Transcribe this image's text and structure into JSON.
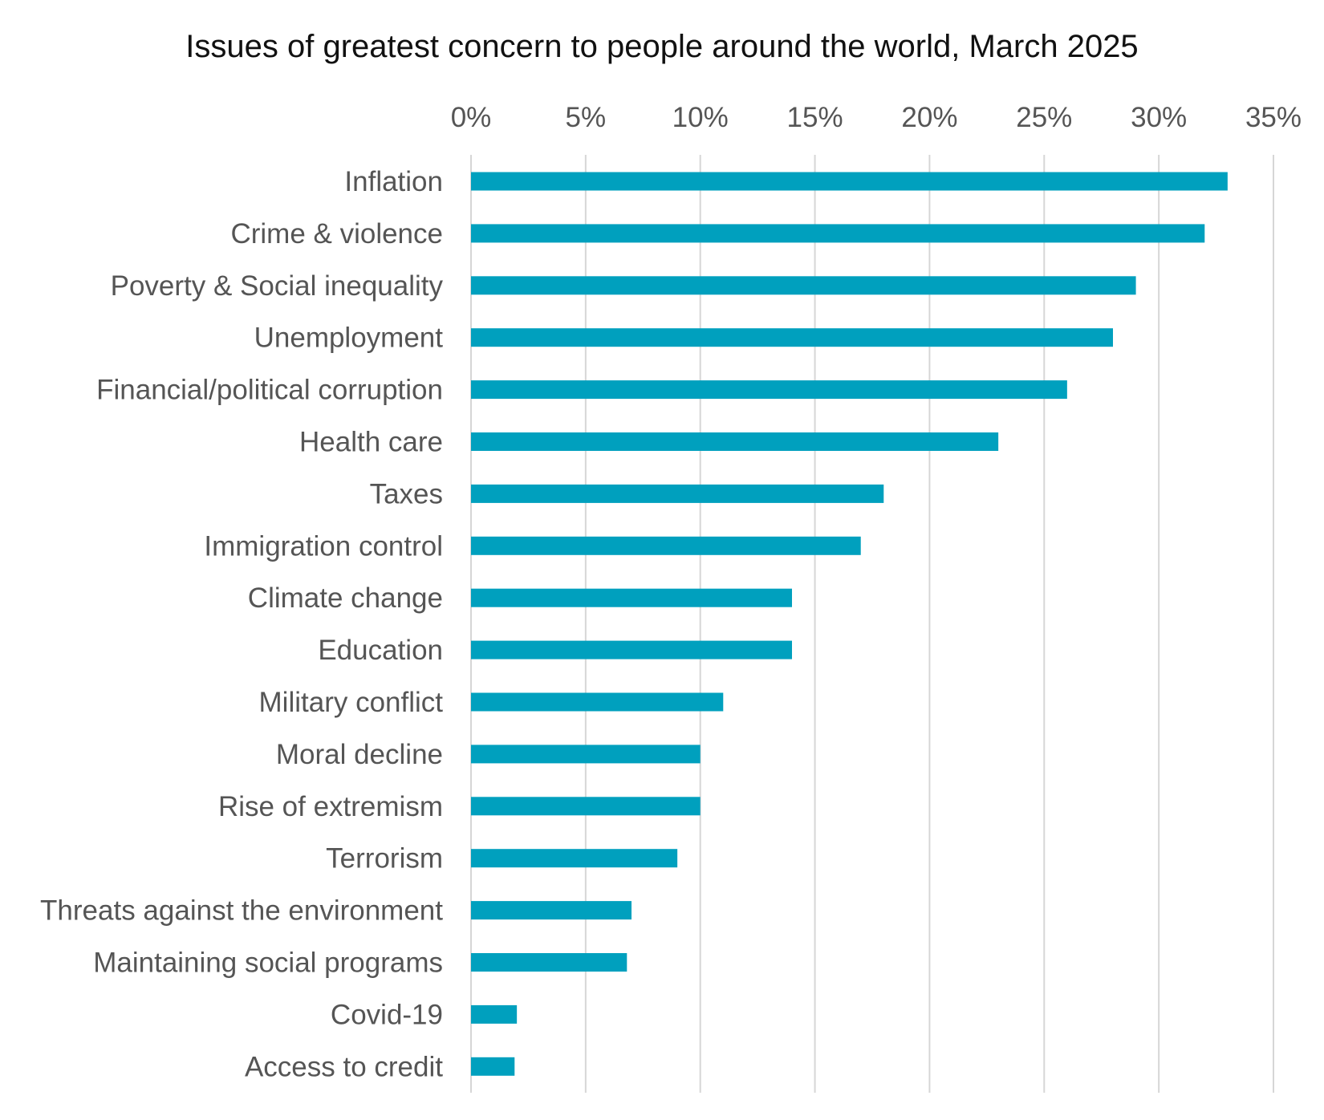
{
  "chart_data": {
    "type": "bar",
    "orientation": "horizontal",
    "title": "Issues of greatest concern to people around the world, March 2025",
    "xlabel": "",
    "ylabel": "",
    "x_axis_position": "top",
    "xlim": [
      0,
      35
    ],
    "x_ticks": [
      0,
      5,
      10,
      15,
      20,
      25,
      30,
      35
    ],
    "x_tick_labels": [
      "0%",
      "5%",
      "10%",
      "15%",
      "20%",
      "25%",
      "30%",
      "35%"
    ],
    "grid": true,
    "legend": "none",
    "bar_color": "#00A0BE",
    "categories": [
      "Inflation",
      "Crime & violence",
      "Poverty & Social inequality",
      "Unemployment",
      "Financial/political corruption",
      "Health care",
      "Taxes",
      "Immigration control",
      "Climate change",
      "Education",
      "Military conflict",
      "Moral decline",
      "Rise of extremism",
      "Terrorism",
      "Threats against the environment",
      "Maintaining social programs",
      "Covid-19",
      "Access to credit"
    ],
    "values": [
      33,
      32,
      29,
      28,
      26,
      23,
      18,
      17,
      14,
      14,
      11,
      10,
      10,
      9,
      7,
      6.8,
      2,
      1.9
    ]
  }
}
